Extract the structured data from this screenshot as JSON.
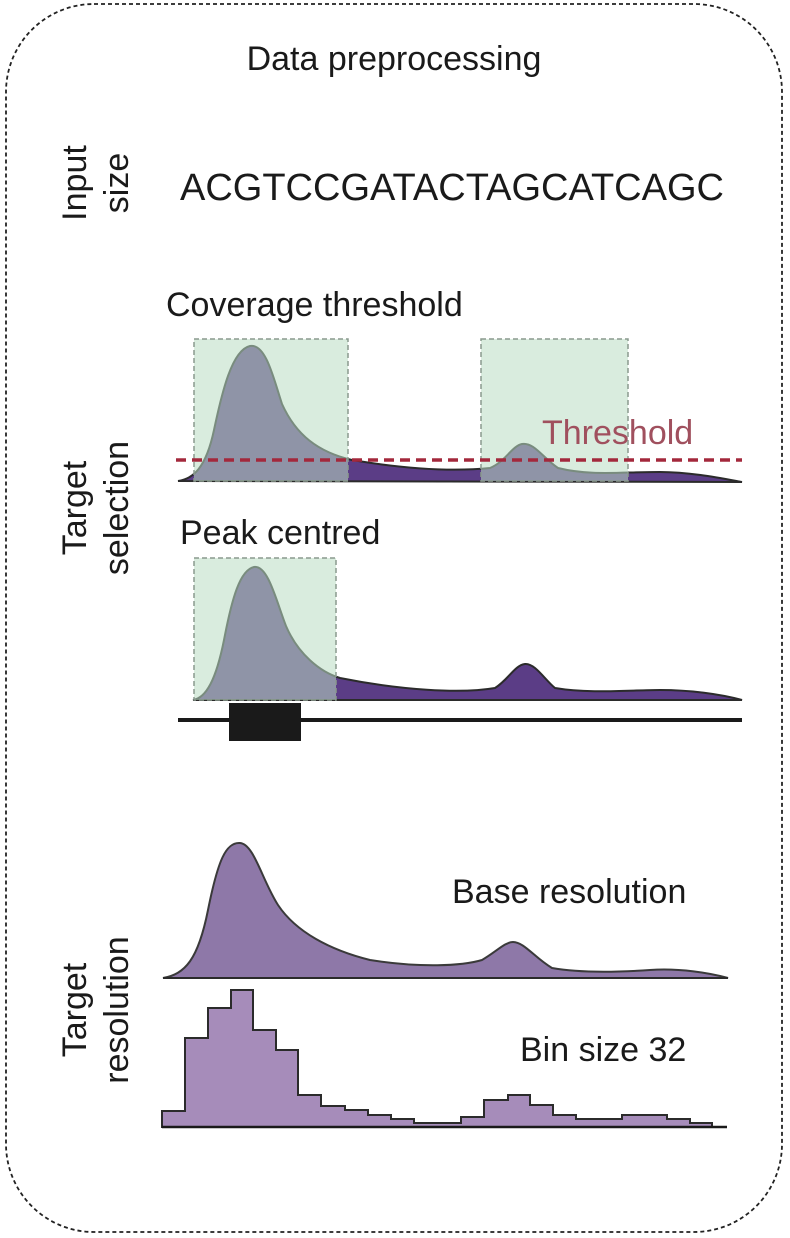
{
  "panel": {
    "title": "Data preprocessing"
  },
  "input_size": {
    "row_label": "Input size",
    "row_label_lines": [
      "Input",
      "size"
    ],
    "sequence": "ACGTCCGATACTAGCATCAGC"
  },
  "target_selection": {
    "row_label": "Target selection",
    "row_label_lines": [
      "Target",
      "selection"
    ],
    "coverage_threshold": {
      "title": "Coverage threshold",
      "threshold_label": "Threshold"
    },
    "peak_centred": {
      "title": "Peak centred"
    }
  },
  "target_resolution": {
    "row_label": "Target resolution",
    "row_label_lines": [
      "Target",
      "resolution"
    ],
    "base_resolution": {
      "title": "Base resolution"
    },
    "binned": {
      "title": "Bin size 32"
    }
  },
  "colors": {
    "signal_dark": "#5b3d86",
    "signal_light": "#8e78a8",
    "signal_bins": "#a68cba",
    "selection_box": "#b9dcc2",
    "threshold_line": "#a3283c",
    "gene_block": "#1a1a1a"
  }
}
